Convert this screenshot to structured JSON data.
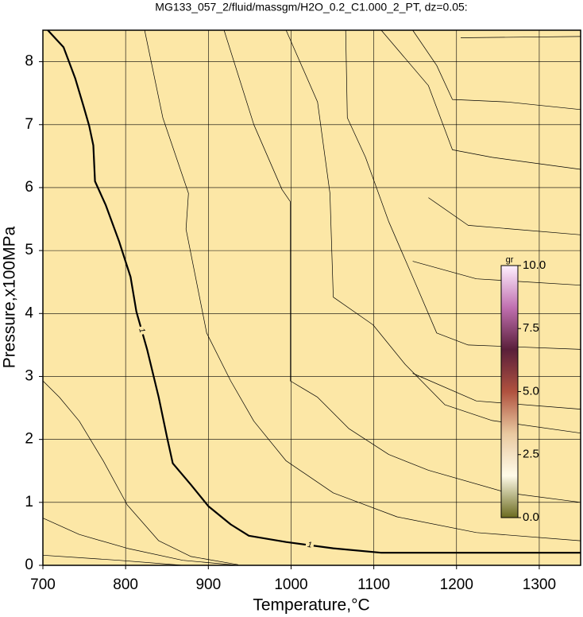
{
  "chart_data": {
    "type": "contour",
    "title": "MG133_057_2/fluid/massgm/H2O_0.2_C1.000_2_PT, dz=0.05:",
    "xlabel": "Temperature,°C",
    "ylabel": "Pressure,x100MPa",
    "xlim": [
      700,
      1350
    ],
    "xticks": [
      700,
      800,
      900,
      1000,
      1100,
      1200,
      1300
    ],
    "ylim": [
      0,
      8.5
    ],
    "yticks": [
      0,
      1,
      2,
      3,
      4,
      5,
      6,
      7,
      8
    ],
    "grid": true,
    "background": "#fce7a6",
    "line_color": "#000000",
    "contours": [
      {
        "label": "1",
        "width": 2.2,
        "x": [
          706,
          725,
          739,
          749,
          756,
          761,
          763,
          776,
          792,
          806,
          813,
          826,
          840,
          850,
          857,
          879,
          900,
          927,
          949,
          994,
          1051,
          1109,
          1350
        ],
        "y": [
          8.5,
          8.23,
          7.74,
          7.3,
          6.98,
          6.67,
          6.1,
          5.72,
          5.15,
          4.58,
          4.03,
          3.43,
          2.67,
          2.04,
          1.62,
          1.28,
          0.94,
          0.65,
          0.47,
          0.37,
          0.27,
          0.2,
          0.2
        ]
      },
      {
        "width": 0.7,
        "x": [
          700,
          720,
          744,
          773,
          802,
          840,
          879,
          936
        ],
        "y": [
          2.93,
          2.67,
          2.29,
          1.66,
          0.96,
          0.39,
          0.14,
          0.01
        ]
      },
      {
        "width": 0.7,
        "x": [
          700,
          744,
          802,
          869,
          936
        ],
        "y": [
          0.75,
          0.49,
          0.27,
          0.08,
          0
        ]
      },
      {
        "width": 0.7,
        "x": [
          700,
          792,
          869
        ],
        "y": [
          0.16,
          0.08,
          0
        ]
      },
      {
        "width": 0.7,
        "x": [
          823,
          845,
          876,
          873,
          898,
          927,
          955,
          994,
          1051,
          1128,
          1224,
          1350
        ],
        "y": [
          8.5,
          7.11,
          5.91,
          5.34,
          3.69,
          2.93,
          2.29,
          1.66,
          1.15,
          0.77,
          0.52,
          0.39
        ]
      },
      {
        "width": 0.7,
        "x": [
          919,
          955,
          989,
          999,
          999,
          1032,
          1070,
          1118,
          1166,
          1262,
          1350
        ],
        "y": [
          8.5,
          7.0,
          5.97,
          5.78,
          2.93,
          2.67,
          2.17,
          1.76,
          1.51,
          1.15,
          1.0
        ]
      },
      {
        "width": 0.7,
        "x": [
          994,
          1032,
          1047,
          1051,
          1099,
          1138,
          1186,
          1243,
          1350
        ],
        "y": [
          8.5,
          7.36,
          5.91,
          4.26,
          3.82,
          3.19,
          2.55,
          2.3,
          2.1
        ]
      },
      {
        "width": 0.7,
        "x": [
          1066,
          1068,
          1090,
          1118,
          1147,
          1176,
          1214,
          1350
        ],
        "y": [
          8.5,
          7.11,
          6.48,
          5.46,
          4.58,
          3.69,
          3.5,
          3.43
        ]
      },
      {
        "width": 0.7,
        "x": [
          1109,
          1166,
          1195,
          1243,
          1350
        ],
        "y": [
          8.5,
          7.62,
          6.6,
          6.48,
          6.29
        ]
      },
      {
        "width": 0.7,
        "x": [
          1147,
          1176,
          1195,
          1262,
          1350
        ],
        "y": [
          8.5,
          7.94,
          7.4,
          7.36,
          7.24
        ]
      },
      {
        "width": 0.7,
        "x": [
          1205,
          1350
        ],
        "y": [
          8.38,
          8.4
        ]
      },
      {
        "width": 0.7,
        "x": [
          1166,
          1214,
          1350
        ],
        "y": [
          5.84,
          5.4,
          5.25
        ]
      },
      {
        "width": 0.7,
        "x": [
          1147,
          1224,
          1350
        ],
        "y": [
          4.83,
          4.55,
          4.45
        ]
      },
      {
        "width": 0.7,
        "x": [
          1147,
          1224,
          1350
        ],
        "y": [
          3.05,
          2.61,
          2.48
        ]
      }
    ],
    "colorbar": {
      "label": "gr",
      "lim": [
        0,
        10
      ],
      "ticks": [
        {
          "value": 0,
          "label": "0.0"
        },
        {
          "value": 2.5,
          "label": "2.5"
        },
        {
          "value": 5,
          "label": "5.0"
        },
        {
          "value": 7.5,
          "label": "7.5"
        },
        {
          "value": 10,
          "label": "10.0"
        }
      ],
      "colors": [
        "#6b6b1f",
        "#fffbe8",
        "#e9c9a0",
        "#b0523f",
        "#5a1f3a",
        "#c070b0",
        "#fff0ff"
      ]
    }
  }
}
